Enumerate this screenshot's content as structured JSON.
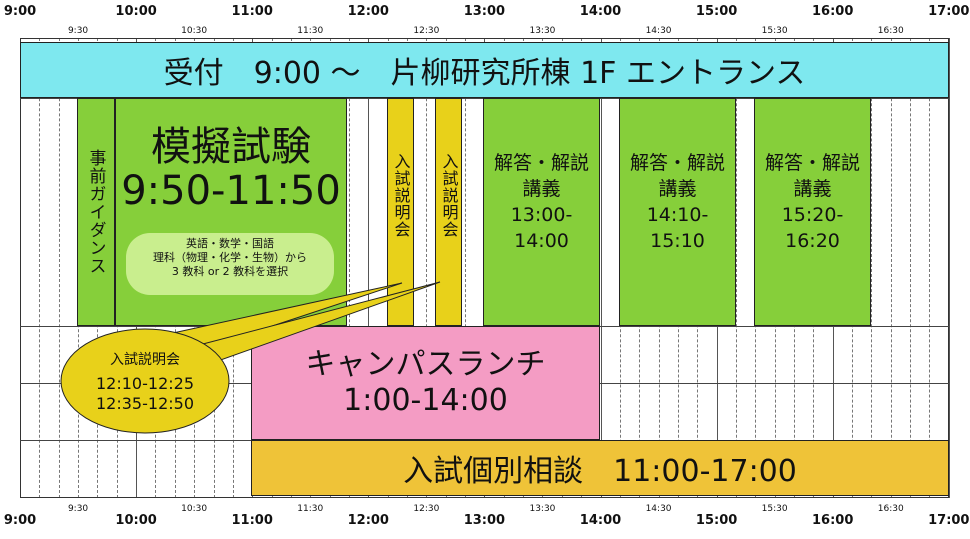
{
  "time_axis": {
    "hours": [
      "9:00",
      "10:00",
      "11:00",
      "12:00",
      "13:00",
      "14:00",
      "15:00",
      "16:00",
      "17:00"
    ],
    "half_hours": [
      "9:30",
      "10:30",
      "11:30",
      "12:30",
      "13:30",
      "14:30",
      "15:30",
      "16:30"
    ]
  },
  "reception": {
    "label": "受付　9:00 ～　片柳研究所棟 1F エントランス"
  },
  "pre_guidance": {
    "label": "事前ガイダンス"
  },
  "mock_exam": {
    "title": "模擬試験",
    "time": "9:50-11:50",
    "subjects": [
      "英語・数学・国語",
      "理科（物理・化学・生物）から",
      "3 教科 or 2 教科を選択"
    ]
  },
  "briefing_1": {
    "label": "入試説明会"
  },
  "briefing_2": {
    "label": "入試説明会"
  },
  "lectures": [
    {
      "title": "解答・解説",
      "subtitle": "講義",
      "time": "13:00-14:00"
    },
    {
      "title": "解答・解説",
      "subtitle": "講義",
      "time": "14:10-15:10"
    },
    {
      "title": "解答・解説",
      "subtitle": "講義",
      "time": "15:20-16:20"
    }
  ],
  "campus_lunch": {
    "title": "キャンパスランチ",
    "time": "1:00-14:00"
  },
  "consultation": {
    "label": "入試個別相談　11:00-17:00"
  },
  "callout": {
    "title": "入試説明会",
    "times": [
      "12:10-12:25",
      "12:35-12:50"
    ]
  },
  "colors": {
    "reception": "#7ee8ef",
    "green": "#86cf3a",
    "yellow": "#e8d11a",
    "pink": "#f49cc4",
    "gold": "#efc338",
    "callout": "#e8d11a"
  }
}
